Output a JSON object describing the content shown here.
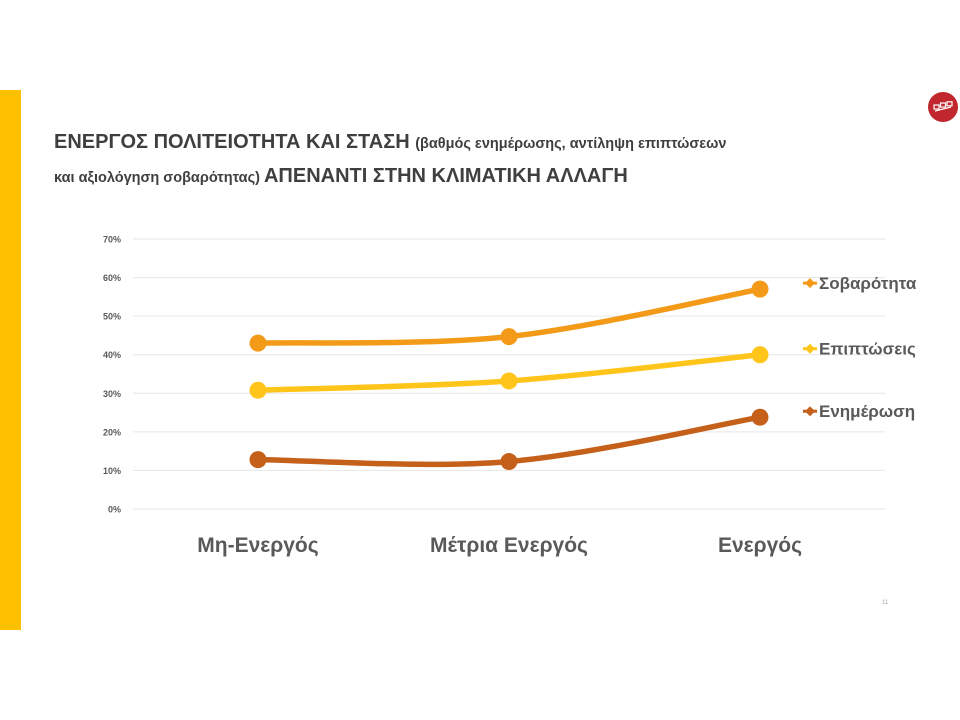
{
  "slide": {
    "title_part1": "ΕΝΕΡΓΟΣ ΠΟΛΙΤΕΙΟΤΗΤΑ ΚΑΙ ΣΤΑΣΗ ",
    "title_part2": "(βαθμός ενημέρωσης, αντίληψη επιπτώσεων",
    "title_part3": "και αξιολόγηση σοβαρότητας) ",
    "title_part4": "ΑΠΕΝΑΝΤΙ ΣΤΗΝ ΚΛΙΜΑΤΙΚΗ ΑΛΛΑΓΗ",
    "page_number": "11",
    "accent_color": "#FFC000",
    "logo_color": "#c0282e",
    "logo_icon": "organization-logo"
  },
  "chart_data": {
    "type": "line",
    "categories": [
      "Μη-Ενεργός",
      "Μέτρια Ενεργός",
      "Ενεργός"
    ],
    "y_ticks": [
      "0%",
      "10%",
      "20%",
      "30%",
      "40%",
      "50%",
      "60%",
      "70%"
    ],
    "ylim": [
      0,
      70
    ],
    "grid": true,
    "legend_position": "right",
    "series": [
      {
        "name": "Σοβαρότητα",
        "values": [
          43,
          44.7,
          57
        ],
        "color": "#F39A18"
      },
      {
        "name": "Επιπτώσεις",
        "values": [
          30.8,
          33.2,
          40
        ],
        "color": "#FFC51A"
      },
      {
        "name": "Ενημέρωση",
        "values": [
          12.8,
          12.3,
          23.8
        ],
        "color": "#C5601A"
      }
    ]
  }
}
